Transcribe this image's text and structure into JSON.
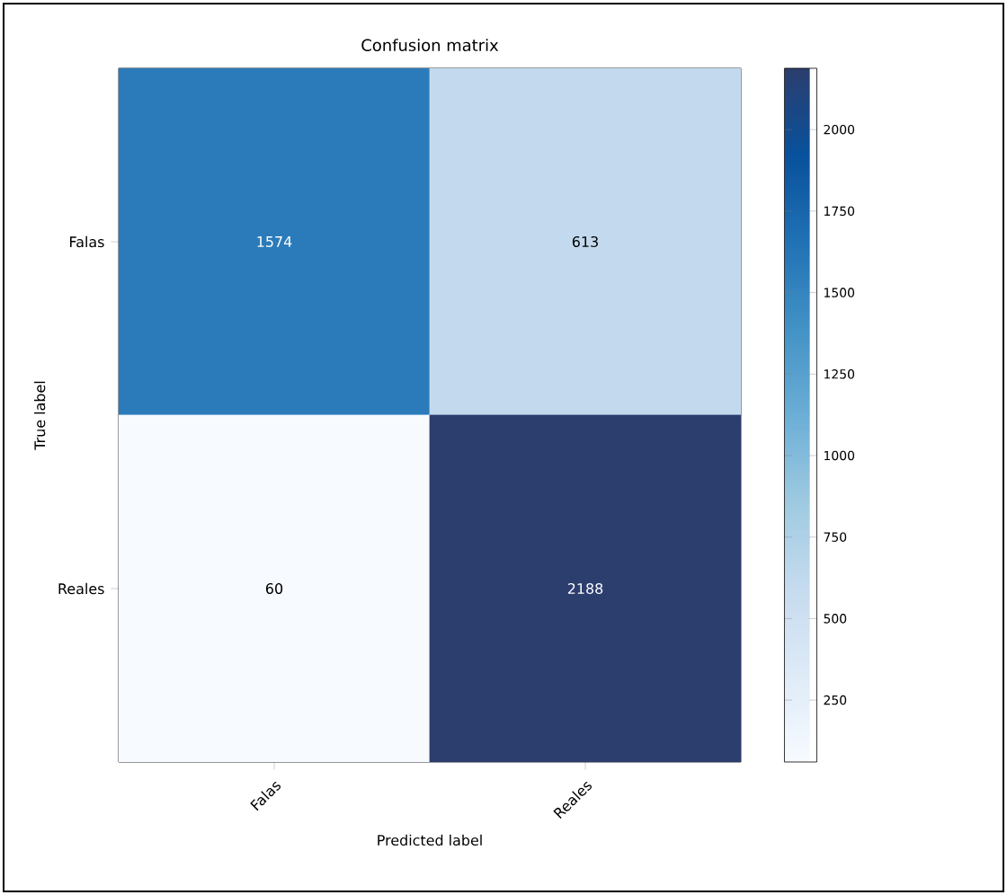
{
  "chart_data": {
    "type": "heatmap",
    "title": "Confusion matrix",
    "xlabel": "Predicted label",
    "ylabel": "True label",
    "categories": [
      "Falas",
      "Reales"
    ],
    "y_categories": [
      "Falas",
      "Reales"
    ],
    "cells": [
      [
        1574,
        613
      ],
      [
        60,
        2188
      ]
    ],
    "clim": [
      60,
      2188
    ],
    "cticks": [
      250,
      500,
      750,
      1000,
      1250,
      1500,
      1750,
      2000
    ],
    "data_labels": true
  }
}
